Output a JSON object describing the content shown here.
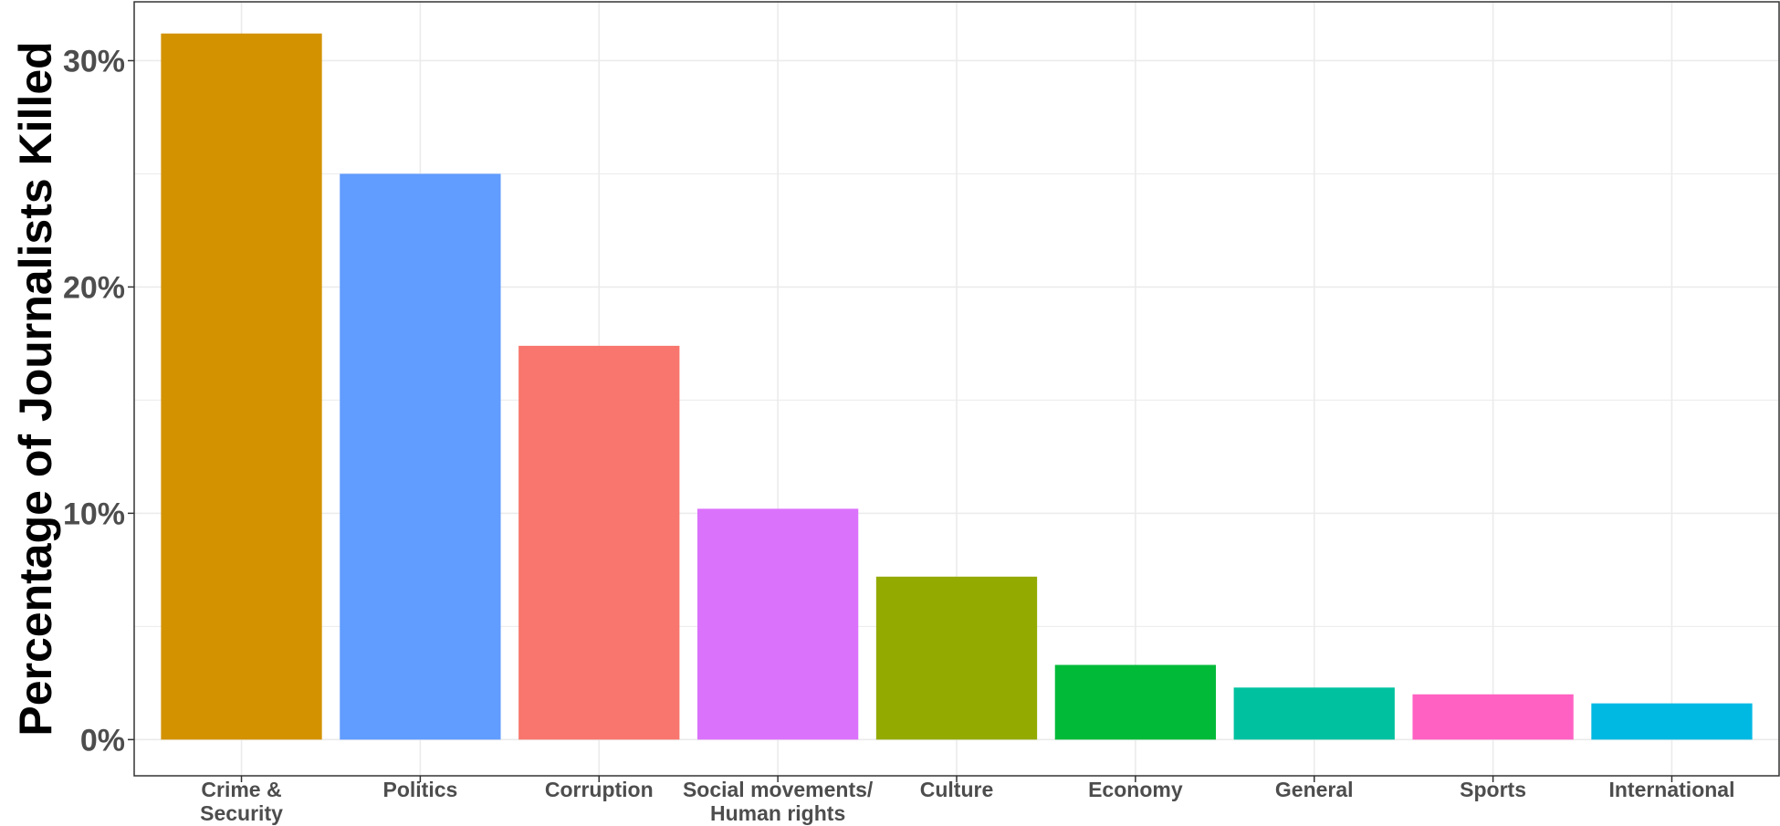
{
  "chart_data": {
    "type": "bar",
    "xlabel": "",
    "ylabel": "Percentage of Journalists Killed",
    "categories": [
      [
        "Crime &",
        "Security"
      ],
      [
        "Politics"
      ],
      [
        "Corruption"
      ],
      [
        "Social movements/",
        "Human rights"
      ],
      [
        "Culture"
      ],
      [
        "Economy"
      ],
      [
        "General"
      ],
      [
        "Sports"
      ],
      [
        "International"
      ]
    ],
    "values": [
      31.2,
      25.0,
      17.4,
      10.2,
      7.2,
      3.3,
      2.3,
      2.0,
      1.6
    ],
    "colors": [
      "#D39200",
      "#619CFF",
      "#F8766D",
      "#DB72FB",
      "#93AA00",
      "#00BA38",
      "#00C19F",
      "#FF61C3",
      "#00B9E3"
    ],
    "ylim": [
      -1.6,
      32.6
    ],
    "yticks": [
      0,
      10,
      20,
      30
    ],
    "ytick_labels": [
      "0%",
      "10%",
      "20%",
      "30%"
    ],
    "grid": true,
    "legend": "none"
  }
}
